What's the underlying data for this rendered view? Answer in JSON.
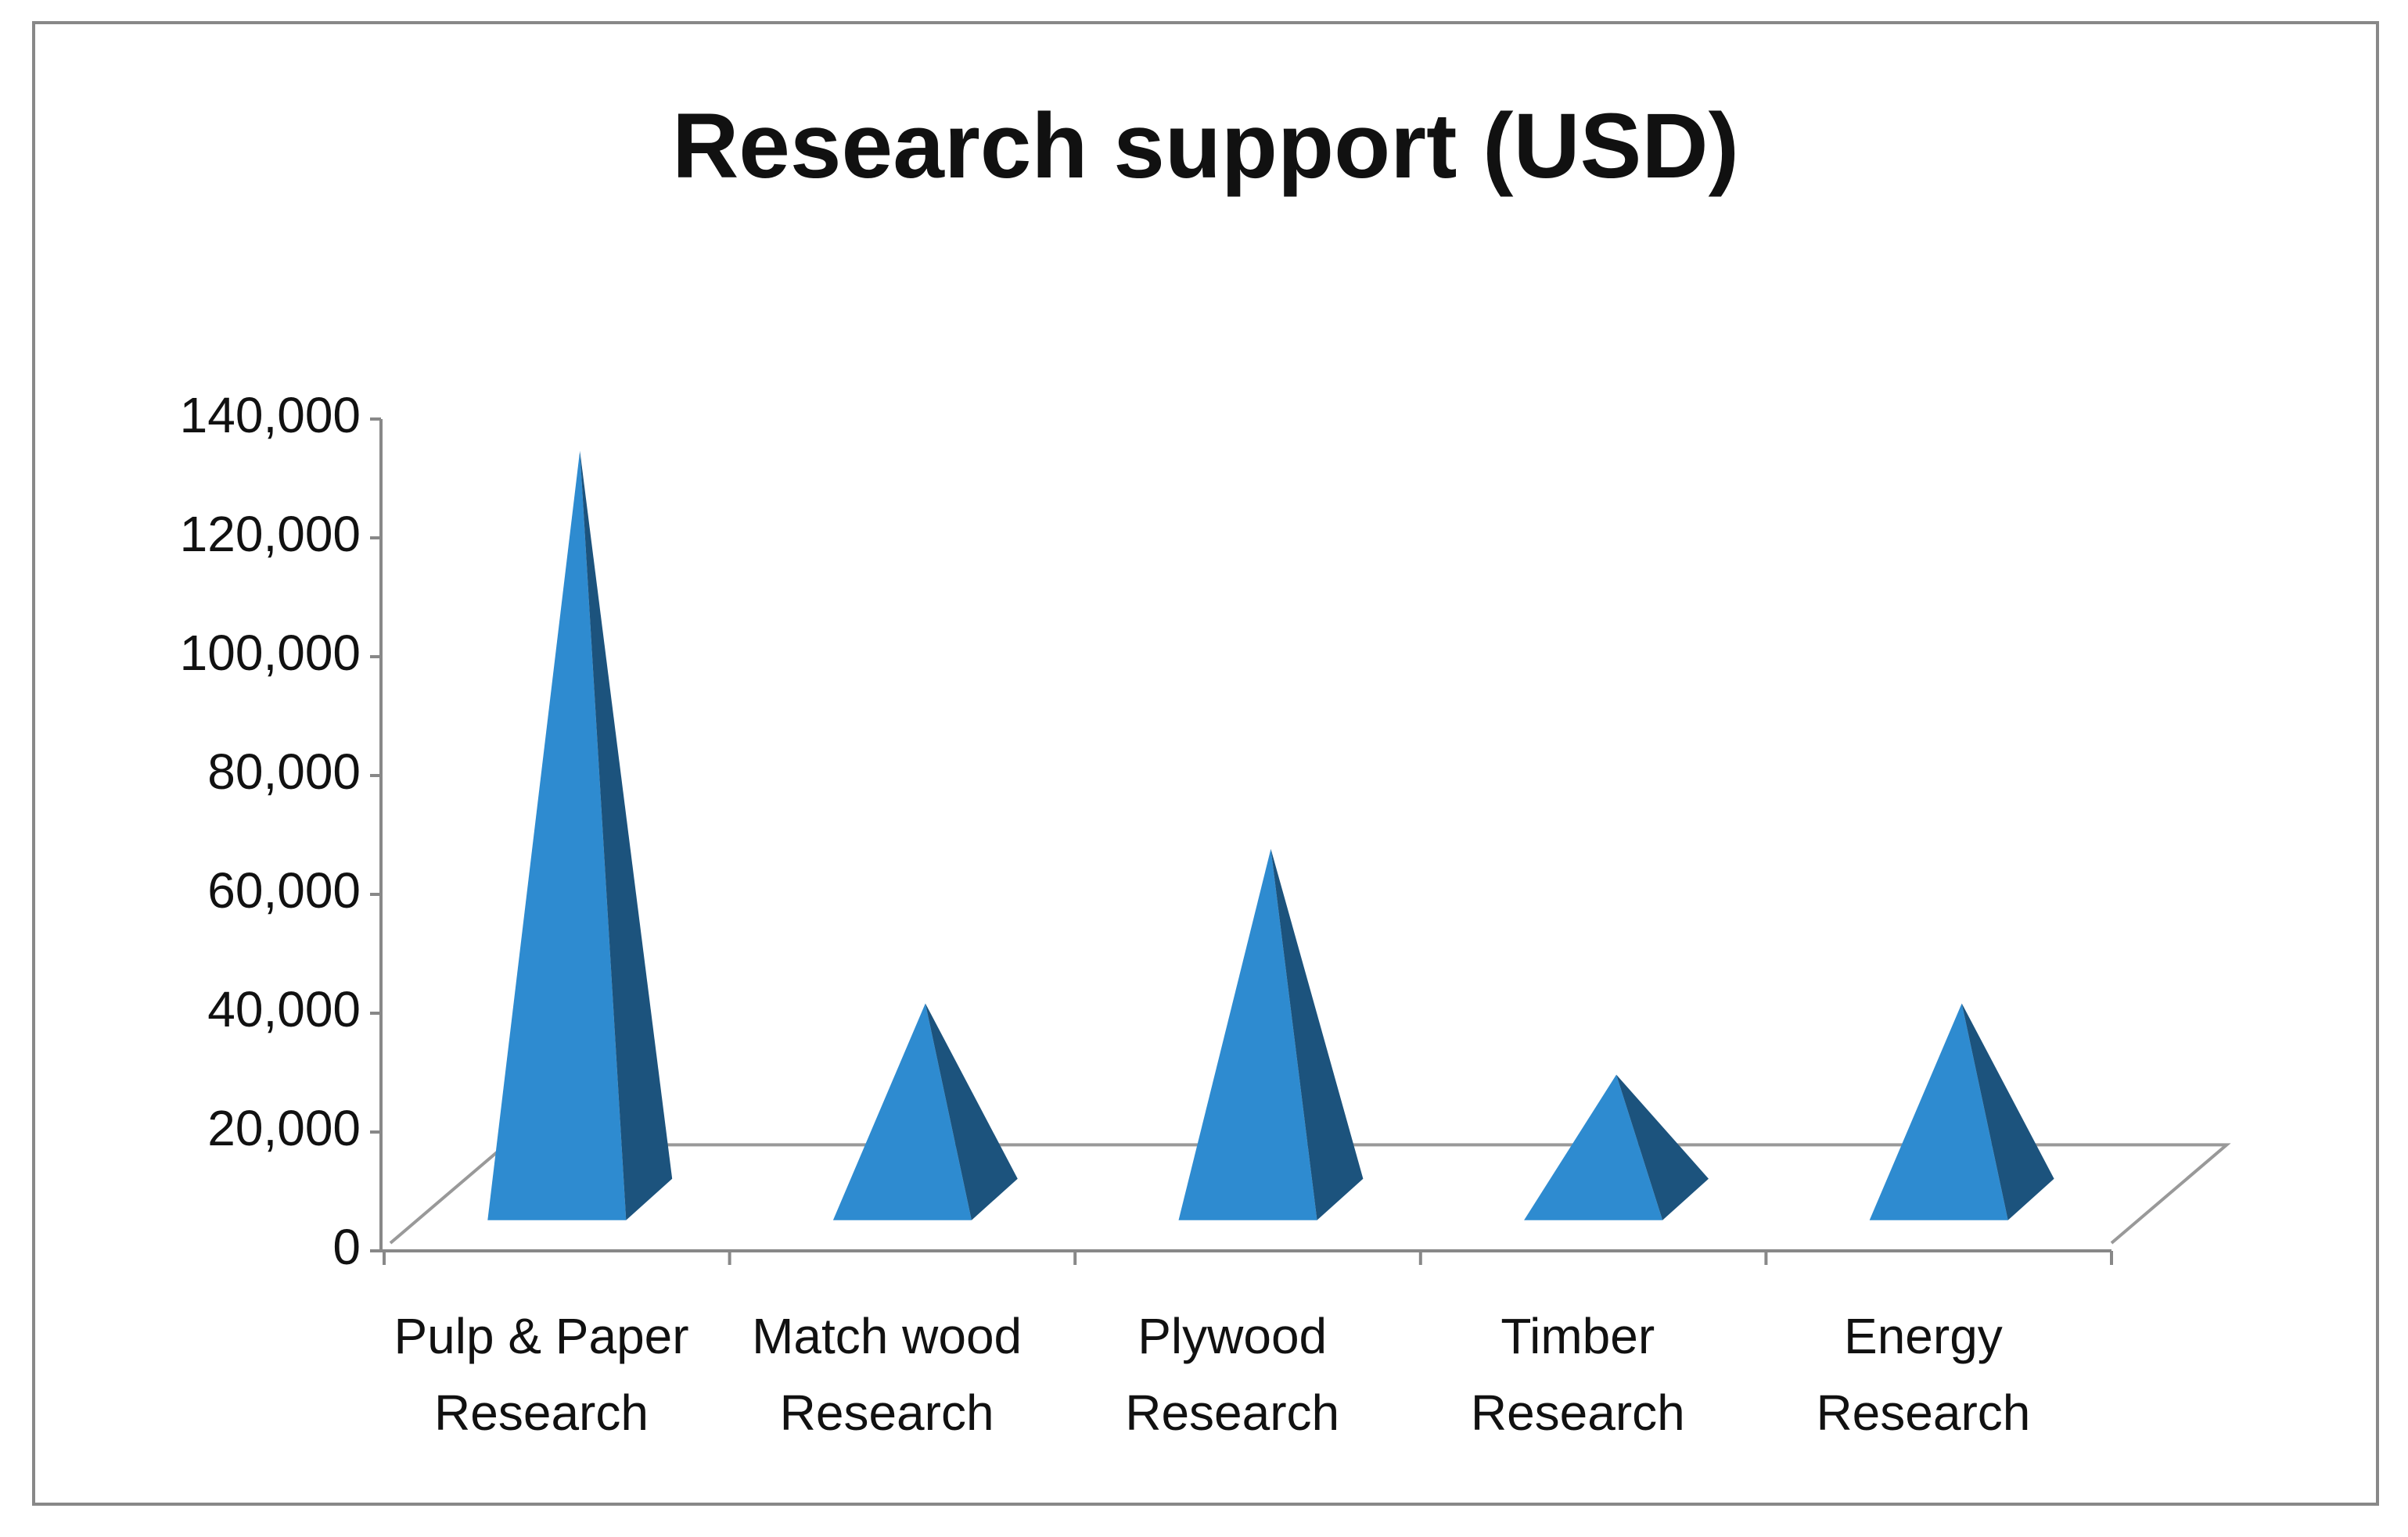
{
  "chart_data": {
    "type": "pyramid",
    "title": "Research support (USD)",
    "categories": [
      "Pulp & Paper Research",
      "Match wood Research",
      "Plywood Research",
      "Timber Research",
      "Energy Research"
    ],
    "values": [
      126000,
      33000,
      59000,
      21000,
      33000
    ],
    "color": "#2e8bd0",
    "ylim": [
      0,
      140000
    ],
    "yticks": [
      0,
      {
        "value": 20000,
        "label": "20,000"
      },
      {
        "value": 40000,
        "label": "40,000"
      },
      {
        "value": 60000,
        "label": "60,000"
      },
      {
        "value": 80000,
        "label": "80,000"
      },
      {
        "value": 100000,
        "label": "100,000"
      },
      {
        "value": 120000,
        "label": "120,000"
      },
      {
        "value": 140000,
        "label": "140,000"
      }
    ]
  }
}
